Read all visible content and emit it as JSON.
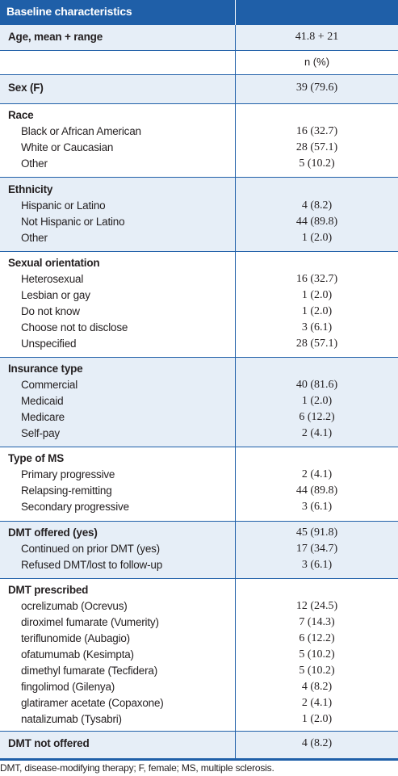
{
  "header": {
    "title": "Baseline characteristics"
  },
  "age": {
    "label": "Age, mean + range",
    "value": "41.8 + 21"
  },
  "npct": {
    "label": "",
    "value": "n (%)"
  },
  "sex": {
    "label": "Sex (F)",
    "value": "39 (79.6)"
  },
  "race": {
    "title": "Race",
    "rows": [
      {
        "label": "Black or African American",
        "value": "16 (32.7)"
      },
      {
        "label": "White or Caucasian",
        "value": "28 (57.1)"
      },
      {
        "label": "Other",
        "value": "5 (10.2)"
      }
    ]
  },
  "ethnicity": {
    "title": "Ethnicity",
    "rows": [
      {
        "label": "Hispanic or Latino",
        "value": "4 (8.2)"
      },
      {
        "label": "Not Hispanic or Latino",
        "value": "44 (89.8)"
      },
      {
        "label": "Other",
        "value": "1 (2.0)"
      }
    ]
  },
  "orientation": {
    "title": "Sexual orientation",
    "rows": [
      {
        "label": "Heterosexual",
        "value": "16 (32.7)"
      },
      {
        "label": "Lesbian or gay",
        "value": "1 (2.0)"
      },
      {
        "label": "Do not know",
        "value": "1 (2.0)"
      },
      {
        "label": "Choose not to disclose",
        "value": "3 (6.1)"
      },
      {
        "label": "Unspecified",
        "value": "28 (57.1)"
      }
    ]
  },
  "insurance": {
    "title": "Insurance type",
    "rows": [
      {
        "label": "Commercial",
        "value": "40 (81.6)"
      },
      {
        "label": "Medicaid",
        "value": "1 (2.0)"
      },
      {
        "label": "Medicare",
        "value": "6 (12.2)"
      },
      {
        "label": "Self-pay",
        "value": "2 (4.1)"
      }
    ]
  },
  "ms_type": {
    "title": "Type of MS",
    "rows": [
      {
        "label": "Primary progressive",
        "value": "2 (4.1)"
      },
      {
        "label": "Relapsing-remitting",
        "value": "44 (89.8)"
      },
      {
        "label": "Secondary progressive",
        "value": "3 (6.1)"
      }
    ]
  },
  "dmt_offered": {
    "title": "DMT offered (yes)",
    "value": "45 (91.8)",
    "rows": [
      {
        "label": "Continued on prior DMT (yes)",
        "value": "17 (34.7)"
      },
      {
        "label": "Refused DMT/lost to follow-up",
        "value": "3 (6.1)"
      }
    ]
  },
  "dmt_prescribed": {
    "title": "DMT prescribed",
    "rows": [
      {
        "label": "ocrelizumab (Ocrevus)",
        "value": "12 (24.5)"
      },
      {
        "label": "diroximel fumarate (Vumerity)",
        "value": "7 (14.3)"
      },
      {
        "label": "teriflunomide (Aubagio)",
        "value": "6 (12.2)"
      },
      {
        "label": "ofatumumab (Kesimpta)",
        "value": "5 (10.2)"
      },
      {
        "label": "dimethyl fumarate (Tecfidera)",
        "value": "5 (10.2)"
      },
      {
        "label": "fingolimod (Gilenya)",
        "value": "4 (8.2)"
      },
      {
        "label": "glatiramer acetate (Copaxone)",
        "value": "2 (4.1)"
      },
      {
        "label": "natalizumab (Tysabri)",
        "value": "1 (2.0)"
      }
    ]
  },
  "dmt_not_offered": {
    "label": "DMT not offered",
    "value": "4 (8.2)"
  },
  "footnote": "DMT, disease-modifying therapy; F, female; MS, multiple sclerosis."
}
